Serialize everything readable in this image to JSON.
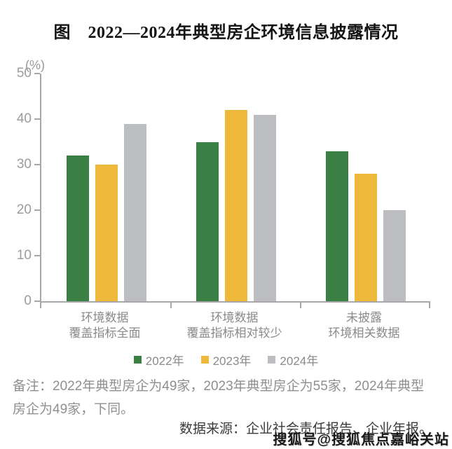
{
  "title": "图　2022—2024年典型房企环境信息披露情况",
  "chart_data": {
    "type": "bar",
    "title": "图　2022—2024年典型房企环境信息披露情况",
    "ylabel": "(%)",
    "xlabel": "",
    "ylim": [
      0,
      50
    ],
    "ytick_step": 10,
    "grid": false,
    "legend_position": "bottom",
    "categories": [
      [
        "环境数据",
        "覆盖指标全面"
      ],
      [
        "环境数据",
        "覆盖指标相对较少"
      ],
      [
        "未披露",
        "环境相关数据"
      ]
    ],
    "series": [
      {
        "name": "2022年",
        "color": "#3a8044",
        "values": [
          32,
          35,
          33
        ]
      },
      {
        "name": "2023年",
        "color": "#eeb93a",
        "values": [
          30,
          42,
          28
        ]
      },
      {
        "name": "2024年",
        "color": "#bcbdc1",
        "values": [
          39,
          41,
          20
        ]
      }
    ]
  },
  "notes": {
    "remark": "备注：2022年典型房企为49家，2023年典型房企为55家，2024年典型房企为49家，下同。",
    "source": "数据来源：企业社会责任报告、企业年报。",
    "watermark": "搜狐号@搜狐焦点嘉峪关站"
  },
  "colors": {
    "axis": "#a8a8a8",
    "tick_label": "#9c9c9c",
    "category_label": "#8a8a8a",
    "legend_label": "#8a8a8a",
    "remark_text": "#8f8f8f",
    "source_text": "#3a3a3a"
  }
}
